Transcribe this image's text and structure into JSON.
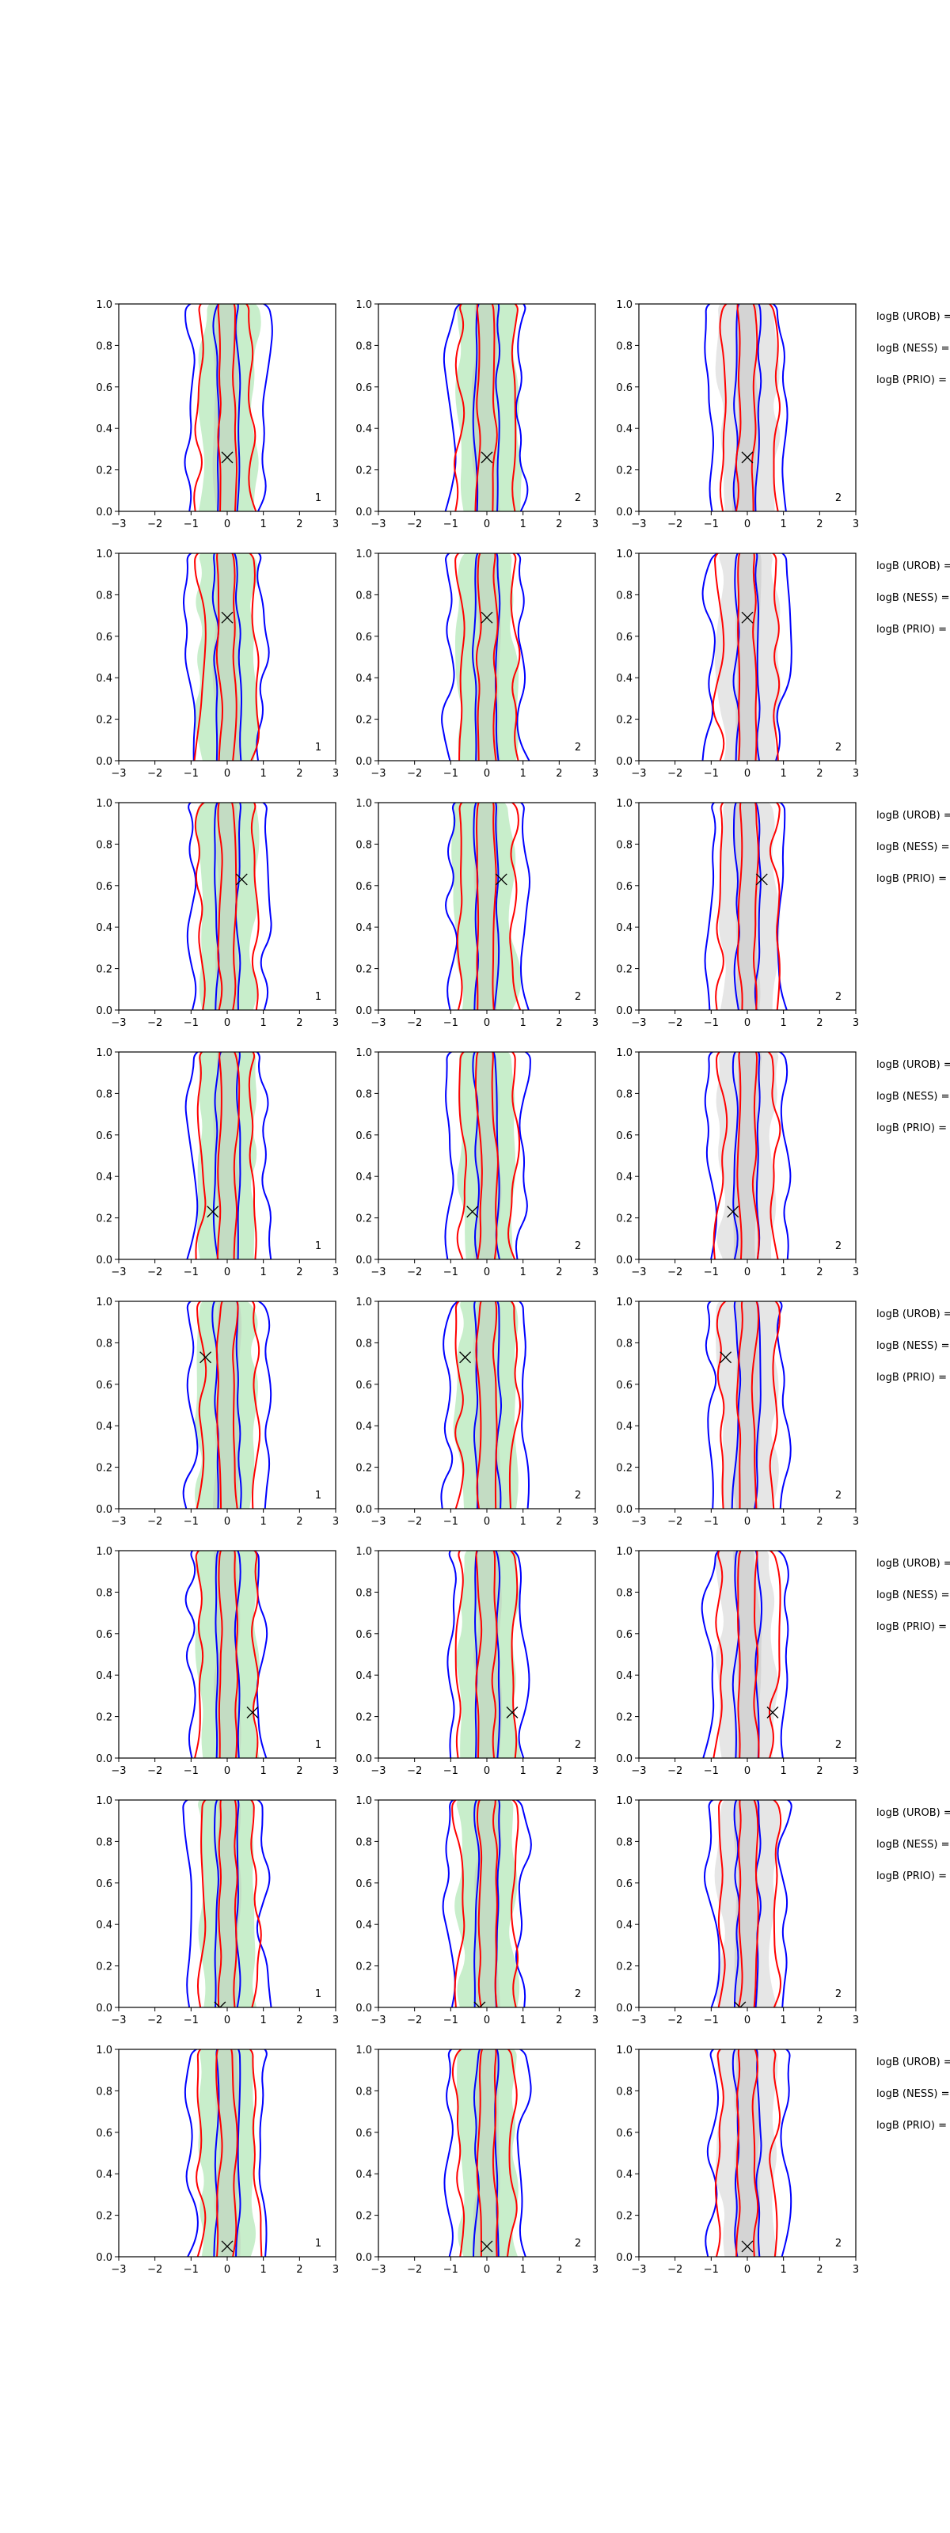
{
  "chart_data": {
    "type": "contour-grid",
    "rows": 8,
    "columns": 3,
    "xlim": [
      -3,
      3
    ],
    "ylim": [
      0.0,
      1.0
    ],
    "x_ticks": [
      "−3",
      "−2",
      "−1",
      "0",
      "1",
      "2",
      "3"
    ],
    "y_ticks": [
      "0.0",
      "0.2",
      "0.4",
      "0.6",
      "0.8",
      "1.0"
    ],
    "column_fill_colors": [
      "#c8eecb",
      "#c8eecb",
      "#e6e6e6"
    ],
    "contour_colors": {
      "blue": "#0000ff",
      "red": "#ff0000"
    },
    "panel_labels": [
      "1",
      "2",
      "2"
    ],
    "markers": [
      {
        "x": 0.0,
        "y": 0.26
      },
      {
        "x": 0.0,
        "y": 0.69
      },
      {
        "x": 0.4,
        "y": 0.63
      },
      {
        "x": -0.4,
        "y": 0.23
      },
      {
        "x": -0.6,
        "y": 0.73
      },
      {
        "x": 0.7,
        "y": 0.22
      },
      {
        "x": -0.2,
        "y": 0.0
      },
      {
        "x": 0.0,
        "y": 0.05
      }
    ],
    "annotations": [
      "logB (UROB) =",
      "logB (NESS) =",
      "logB (PRIO) ="
    ]
  }
}
